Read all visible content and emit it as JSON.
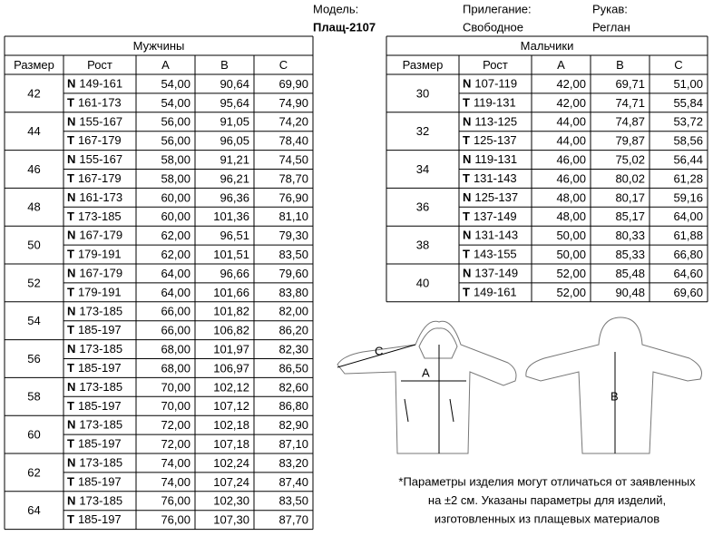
{
  "header": {
    "model_label": "Модель:",
    "model": "Плащ-2107",
    "fit_label": "Прилегание:",
    "fit": "Свободное",
    "sleeve_label": "Рукав:",
    "sleeve": "Реглан"
  },
  "tables": [
    {
      "title": "Мужчины",
      "columns": [
        "Размер",
        "Рост",
        "A",
        "B",
        "C"
      ],
      "groups": [
        {
          "size": "42",
          "rows": [
            [
              "N",
              "149-161",
              "54,00",
              "90,64",
              "69,90"
            ],
            [
              "T",
              "161-173",
              "54,00",
              "95,64",
              "74,90"
            ]
          ]
        },
        {
          "size": "44",
          "rows": [
            [
              "N",
              "155-167",
              "56,00",
              "91,05",
              "74,20"
            ],
            [
              "T",
              "167-179",
              "56,00",
              "96,05",
              "78,40"
            ]
          ]
        },
        {
          "size": "46",
          "rows": [
            [
              "N",
              "155-167",
              "58,00",
              "91,21",
              "74,50"
            ],
            [
              "T",
              "167-179",
              "58,00",
              "96,21",
              "78,70"
            ]
          ]
        },
        {
          "size": "48",
          "rows": [
            [
              "N",
              "161-173",
              "60,00",
              "96,36",
              "76,90"
            ],
            [
              "T",
              "173-185",
              "60,00",
              "101,36",
              "81,10"
            ]
          ]
        },
        {
          "size": "50",
          "rows": [
            [
              "N",
              "167-179",
              "62,00",
              "96,51",
              "79,30"
            ],
            [
              "T",
              "179-191",
              "62,00",
              "101,51",
              "83,50"
            ]
          ]
        },
        {
          "size": "52",
          "rows": [
            [
              "N",
              "167-179",
              "64,00",
              "96,66",
              "79,60"
            ],
            [
              "T",
              "179-191",
              "64,00",
              "101,66",
              "83,80"
            ]
          ]
        },
        {
          "size": "54",
          "rows": [
            [
              "N",
              "173-185",
              "66,00",
              "101,82",
              "82,00"
            ],
            [
              "T",
              "185-197",
              "66,00",
              "106,82",
              "86,20"
            ]
          ]
        },
        {
          "size": "56",
          "rows": [
            [
              "N",
              "173-185",
              "68,00",
              "101,97",
              "82,30"
            ],
            [
              "T",
              "185-197",
              "68,00",
              "106,97",
              "86,50"
            ]
          ]
        },
        {
          "size": "58",
          "rows": [
            [
              "N",
              "173-185",
              "70,00",
              "102,12",
              "82,60"
            ],
            [
              "T",
              "185-197",
              "70,00",
              "107,12",
              "86,80"
            ]
          ]
        },
        {
          "size": "60",
          "rows": [
            [
              "N",
              "173-185",
              "72,00",
              "102,18",
              "82,90"
            ],
            [
              "T",
              "185-197",
              "72,00",
              "107,18",
              "87,10"
            ]
          ]
        },
        {
          "size": "62",
          "rows": [
            [
              "N",
              "173-185",
              "74,00",
              "102,24",
              "83,20"
            ],
            [
              "T",
              "185-197",
              "74,00",
              "107,24",
              "87,40"
            ]
          ]
        },
        {
          "size": "64",
          "rows": [
            [
              "N",
              "173-185",
              "76,00",
              "102,30",
              "83,50"
            ],
            [
              "T",
              "185-197",
              "76,00",
              "107,30",
              "87,70"
            ]
          ]
        }
      ]
    },
    {
      "title": "Мальчики",
      "columns": [
        "Размер",
        "Рост",
        "A",
        "B",
        "C"
      ],
      "groups": [
        {
          "size": "30",
          "rows": [
            [
              "N",
              "107-119",
              "42,00",
              "69,71",
              "51,00"
            ],
            [
              "T",
              "119-131",
              "42,00",
              "74,71",
              "55,84"
            ]
          ]
        },
        {
          "size": "32",
          "rows": [
            [
              "N",
              "113-125",
              "44,00",
              "74,87",
              "53,72"
            ],
            [
              "T",
              "125-137",
              "44,00",
              "79,87",
              "58,56"
            ]
          ]
        },
        {
          "size": "34",
          "rows": [
            [
              "N",
              "119-131",
              "46,00",
              "75,02",
              "56,44"
            ],
            [
              "T",
              "131-143",
              "46,00",
              "80,02",
              "61,28"
            ]
          ]
        },
        {
          "size": "36",
          "rows": [
            [
              "N",
              "125-137",
              "48,00",
              "80,17",
              "59,16"
            ],
            [
              "T",
              "137-149",
              "48,00",
              "85,17",
              "64,00"
            ]
          ]
        },
        {
          "size": "38",
          "rows": [
            [
              "N",
              "131-143",
              "50,00",
              "80,33",
              "61,88"
            ],
            [
              "T",
              "143-155",
              "50,00",
              "85,33",
              "66,80"
            ]
          ]
        },
        {
          "size": "40",
          "rows": [
            [
              "N",
              "137-149",
              "52,00",
              "85,48",
              "64,60"
            ],
            [
              "T",
              "149-161",
              "52,00",
              "90,48",
              "69,60"
            ]
          ]
        }
      ]
    }
  ],
  "diagram": {
    "label_a": "A",
    "label_b": "B",
    "label_c": "C"
  },
  "note": [
    "*Параметры изделия могут отличаться от заявленных",
    "на ±2 см. Указаны параметры для изделий,",
    "изготовленных из плащевых материалов"
  ]
}
